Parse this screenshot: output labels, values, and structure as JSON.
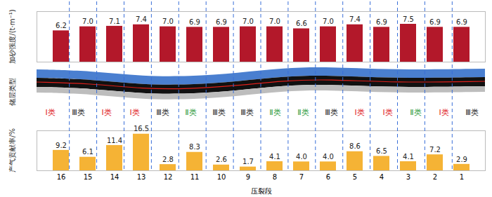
{
  "chart_data": [
    {
      "type": "bar",
      "y_label": "加砂强度/(t·m⁻¹)",
      "categories": [
        "16",
        "15",
        "14",
        "13",
        "12",
        "11",
        "10",
        "9",
        "8",
        "7",
        "6",
        "5",
        "4",
        "3",
        "2",
        "1"
      ],
      "values": [
        6.2,
        7.0,
        7.1,
        7.4,
        7.0,
        6.9,
        6.9,
        7.0,
        7.0,
        6.6,
        7.0,
        7.4,
        6.9,
        7.5,
        6.9,
        6.9
      ],
      "value_labels": [
        "6.2",
        "7.0",
        "7.1",
        "7.4",
        "7.0",
        "6.9",
        "6.9",
        "7.0",
        "7.0",
        "6.6",
        "7.0",
        "7.4",
        "6.9",
        "7.5",
        "6.9",
        "6.9"
      ],
      "color": "#b3182a",
      "ylim": [
        0,
        10
      ],
      "yticks": [],
      "data_labels": true,
      "tick_labels": false
    },
    {
      "type": "label_row",
      "y_label": "储层类型",
      "categories": [
        "16",
        "15",
        "14",
        "13",
        "12",
        "11",
        "10",
        "9",
        "8",
        "7",
        "6",
        "5",
        "4",
        "3",
        "2",
        "1"
      ],
      "labels": [
        "Ⅰ类",
        "Ⅲ类",
        "Ⅰ类",
        "Ⅰ类",
        "Ⅲ类",
        "Ⅱ类",
        "Ⅲ类",
        "Ⅲ类",
        "Ⅱ类",
        "Ⅱ类",
        "Ⅲ类",
        "Ⅰ类",
        "Ⅰ类",
        "Ⅱ类",
        "Ⅰ类",
        "Ⅲ类"
      ],
      "colors": [
        "#e0201b",
        "#222222",
        "#e0201b",
        "#e0201b",
        "#222222",
        "#2e9a3a",
        "#222222",
        "#222222",
        "#2e9a3a",
        "#2e9a3a",
        "#222222",
        "#e0201b",
        "#e0201b",
        "#2e9a3a",
        "#e0201b",
        "#222222"
      ]
    },
    {
      "type": "bar",
      "y_label": "产气贡献率/%",
      "x_label": "压裂段",
      "categories": [
        "16",
        "15",
        "14",
        "13",
        "12",
        "11",
        "10",
        "9",
        "8",
        "7",
        "6",
        "5",
        "4",
        "3",
        "2",
        "1"
      ],
      "values": [
        9.2,
        6.1,
        11.4,
        16.5,
        2.8,
        8.3,
        2.6,
        1.7,
        4.1,
        4.0,
        4.0,
        8.6,
        6.5,
        4.1,
        7.2,
        2.9
      ],
      "value_labels": [
        "9.2",
        "6.1",
        "11.4",
        "16.5",
        "2.8",
        "8.3",
        "2.6",
        "1.7",
        "4.1",
        "4.0",
        "4.0",
        "8.6",
        "6.5",
        "4.1",
        "7.2",
        "2.9"
      ],
      "color": "#f5b335",
      "ylim": [
        0,
        18
      ],
      "yticks": [],
      "data_labels": true,
      "tick_labels": "x"
    }
  ]
}
